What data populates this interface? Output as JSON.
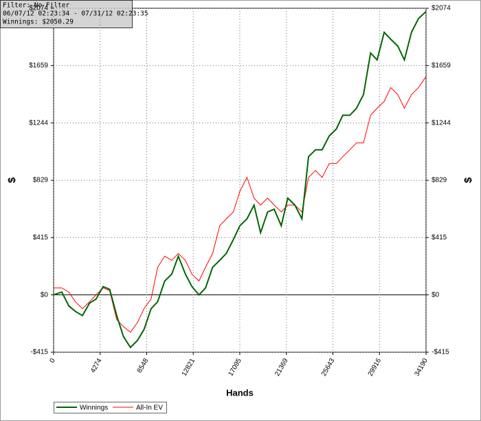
{
  "chart_data": {
    "type": "line",
    "info": [
      "Filter: No Filter",
      "06/07/12 02:23:34 - 07/31/12 02:23:35",
      "Winnings: $2050.29"
    ],
    "xlabel": "Hands",
    "ylabel": "$",
    "y2label": "$",
    "x": [
      0,
      750,
      1400,
      2000,
      2650,
      3300,
      3900,
      4550,
      5150,
      5800,
      6400,
      7050,
      7700,
      8300,
      8950,
      9550,
      10200,
      10850,
      11450,
      12100,
      12700,
      13350,
      13950,
      14600,
      15250,
      15850,
      16500,
      17100,
      17750,
      18400,
      19000,
      19650,
      20250,
      20900,
      21500,
      22150,
      22800,
      23400,
      24050,
      24650,
      25300,
      25950,
      26550,
      27200,
      27800,
      28450,
      29100,
      29700,
      30350,
      30950,
      31600,
      32200,
      32850,
      33500,
      34190
    ],
    "series": [
      {
        "name": "Winnings",
        "color": "#006400",
        "values": [
          0,
          20,
          -80,
          -120,
          -150,
          -60,
          -30,
          60,
          40,
          -150,
          -300,
          -380,
          -330,
          -250,
          -100,
          -50,
          100,
          150,
          280,
          150,
          60,
          0,
          50,
          200,
          250,
          300,
          400,
          500,
          550,
          650,
          450,
          600,
          620,
          500,
          700,
          650,
          550,
          1000,
          1050,
          1050,
          1150,
          1200,
          1300,
          1300,
          1350,
          1450,
          1750,
          1700,
          1900,
          1850,
          1800,
          1700,
          1900,
          2000,
          2050
        ]
      },
      {
        "name": "All-In EV",
        "color": "#ff0000",
        "values": [
          50,
          50,
          20,
          -50,
          -100,
          -50,
          0,
          50,
          30,
          -180,
          -230,
          -270,
          -200,
          -100,
          -30,
          200,
          280,
          250,
          300,
          250,
          150,
          100,
          200,
          300,
          500,
          550,
          600,
          750,
          850,
          700,
          650,
          700,
          650,
          600,
          650,
          650,
          600,
          850,
          900,
          850,
          950,
          950,
          1000,
          1050,
          1100,
          1100,
          1300,
          1350,
          1400,
          1500,
          1450,
          1350,
          1450,
          1500,
          1580
        ]
      }
    ],
    "xlim": [
      0,
      34190
    ],
    "xticks": [
      0,
      4274,
      8548,
      12821,
      17095,
      21369,
      25643,
      29916,
      34190
    ],
    "ylim": [
      -415,
      2074
    ],
    "yticks": [
      {
        "value": -415,
        "label": "-$415"
      },
      {
        "value": 0,
        "label": "$0"
      },
      {
        "value": 415,
        "label": "$415"
      },
      {
        "value": 829,
        "label": "$829"
      },
      {
        "value": 1244,
        "label": "$1244"
      },
      {
        "value": 1659,
        "label": "$1659"
      },
      {
        "value": 2074,
        "label": "$2074"
      }
    ],
    "grid": true
  }
}
